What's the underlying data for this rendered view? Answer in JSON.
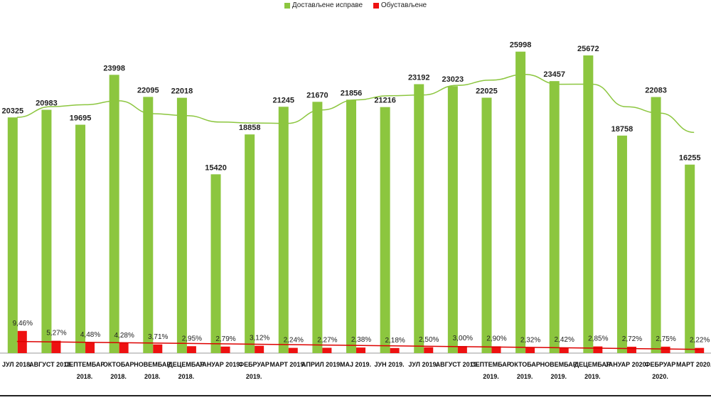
{
  "chart_data": {
    "type": "bar",
    "categories": [
      [
        "ЈУЛ 2018."
      ],
      [
        "АВГУСТ 2018."
      ],
      [
        "СЕПТЕМБАР",
        "2018."
      ],
      [
        "ОКТОБАР",
        "2018."
      ],
      [
        "НОВЕМБАР",
        "2018."
      ],
      [
        "ДЕЦЕМБАР",
        "2018."
      ],
      [
        "ЈАНУАР 2019."
      ],
      [
        "ФЕБРУАР",
        "2019."
      ],
      [
        "МАРТ 2019."
      ],
      [
        "АПРИЛ 2019."
      ],
      [
        "МАЈ 2019."
      ],
      [
        "ЈУН 2019."
      ],
      [
        "ЈУЛ 2019."
      ],
      [
        "АВГУСТ 2019."
      ],
      [
        "СЕПТЕМБАР",
        "2019."
      ],
      [
        "ОКТОБАР",
        "2019."
      ],
      [
        "НОВЕМБАР",
        "2019."
      ],
      [
        "ДЕЦЕМБАР",
        "2019."
      ],
      [
        "ЈАНУАР 2020."
      ],
      [
        "ФЕБРУАР",
        "2020."
      ],
      [
        "МАРТ 2020."
      ]
    ],
    "series": [
      {
        "name": "Достављене исправе",
        "color": "#8cc63f",
        "values": [
          20325,
          20983,
          19695,
          23998,
          22095,
          22018,
          15420,
          18858,
          21245,
          21670,
          21856,
          21216,
          23192,
          23023,
          22025,
          25998,
          23457,
          25672,
          18758,
          22083,
          16255
        ],
        "labels": [
          "20325",
          "20983",
          "19695",
          "23998",
          "22095",
          "22018",
          "15420",
          "18858",
          "21245",
          "21670",
          "21856",
          "21216",
          "23192",
          "23023",
          "22025",
          "25998",
          "23457",
          "25672",
          "18758",
          "22083",
          "16255"
        ]
      },
      {
        "name": "Обустављене",
        "color": "#ee1111",
        "values": [
          9.46,
          5.27,
          4.48,
          4.28,
          3.71,
          2.95,
          2.79,
          3.12,
          2.24,
          2.27,
          2.38,
          2.18,
          2.5,
          3.0,
          2.9,
          2.32,
          2.42,
          2.85,
          2.72,
          2.75,
          2.22
        ],
        "labels": [
          "9,46%",
          "5,27%",
          "4,48%",
          "4,28%",
          "3,71%",
          "2,95%",
          "2,79%",
          "3,12%",
          "2,24%",
          "2,27%",
          "2,38%",
          "2,18%",
          "2,50%",
          "3,00%",
          "2,90%",
          "2,32%",
          "2,42%",
          "2,85%",
          "2,72%",
          "2,75%",
          "2,22%"
        ]
      }
    ],
    "trendlines": [
      {
        "series": "Достављене исправе",
        "type": "polynomial",
        "color": "#8cc63f"
      },
      {
        "series": "Обустављене",
        "type": "linear",
        "color": "#dd0000"
      }
    ],
    "ylim": [
      0,
      28000
    ],
    "grid": false,
    "legend": "top-center"
  }
}
